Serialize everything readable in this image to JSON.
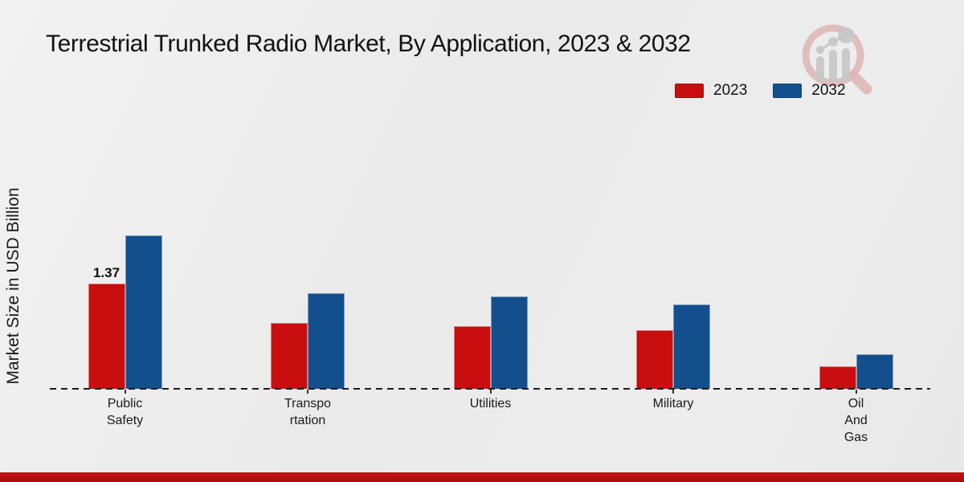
{
  "title": "Terrestrial Trunked Radio Market, By Application, 2023 & 2032",
  "y_axis_label": "Market Size in USD Billion",
  "legend": {
    "items": [
      {
        "label": "2023",
        "color": "#c80e0e"
      },
      {
        "label": "2032",
        "color": "#134f8c"
      }
    ]
  },
  "footer_bar_color": "#b50f0f",
  "logo_name": "market-research-future-watermark",
  "chart_data": {
    "type": "bar",
    "title": "Terrestrial Trunked Radio Market, By Application, 2023 & 2032",
    "xlabel": "",
    "ylabel": "Market Size in USD Billion",
    "unit": "USD Billion",
    "categories": [
      "Public Safety",
      "Transportation",
      "Utilities",
      "Military",
      "Oil And Gas"
    ],
    "category_display_lines": [
      [
        "Public",
        "Safety"
      ],
      [
        "Transpo",
        "rtation"
      ],
      [
        "Utilities"
      ],
      [
        "Military"
      ],
      [
        "Oil",
        "And",
        "Gas"
      ]
    ],
    "series": [
      {
        "name": "2023",
        "color": "#c80e0e",
        "values": [
          1.37,
          0.86,
          0.82,
          0.76,
          0.29
        ]
      },
      {
        "name": "2032",
        "color": "#134f8c",
        "values": [
          2.0,
          1.25,
          1.2,
          1.1,
          0.45
        ]
      }
    ],
    "bar_labels": [
      {
        "series": "2023",
        "category": "Public Safety",
        "text": "1.37"
      }
    ],
    "ylim": [
      0,
      2.2
    ],
    "grid": false,
    "axis_line_style": "dashed",
    "legend_position": "top-right"
  }
}
